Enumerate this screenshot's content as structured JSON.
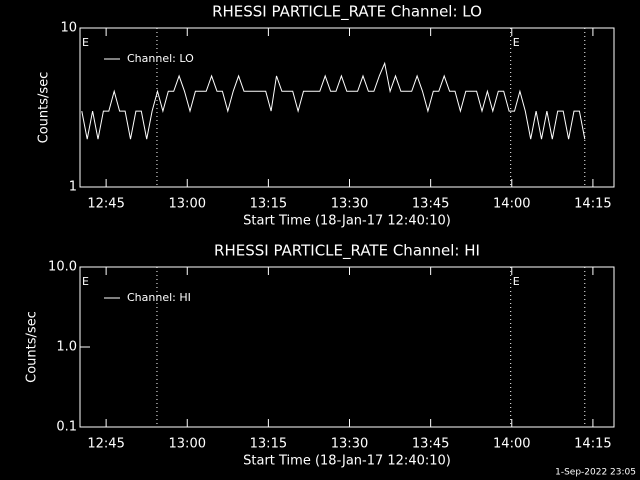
{
  "chart_data": [
    {
      "type": "line",
      "title": "RHESSI PARTICLE_RATE Channel: LO",
      "xlabel": "Start Time (18-Jan-17 12:40:10)",
      "ylabel": "Counts/sec",
      "log_y": true,
      "xlim": [
        760.17,
        858.9
      ],
      "xticks": [
        {
          "value": 765,
          "label": "12:45"
        },
        {
          "value": 780,
          "label": "13:00"
        },
        {
          "value": 795,
          "label": "13:15"
        },
        {
          "value": 810,
          "label": "13:30"
        },
        {
          "value": 825,
          "label": "13:45"
        },
        {
          "value": 840,
          "label": "14:00"
        },
        {
          "value": 855,
          "label": "14:15"
        }
      ],
      "ylim": [
        1,
        10
      ],
      "yticks": [
        1,
        10
      ],
      "series": [
        {
          "name": "Channel: LO",
          "color": "#ffffff",
          "x": [
            760.5,
            761.5,
            762.5,
            763.5,
            764.5,
            765.5,
            766.5,
            767.5,
            768.5,
            769.5,
            770.5,
            771.5,
            772.5,
            773.5,
            774.5,
            775.5,
            776.5,
            777.5,
            778.5,
            779.5,
            780.5,
            781.5,
            782.5,
            783.5,
            784.5,
            785.5,
            786.5,
            787.5,
            788.5,
            789.5,
            790.5,
            791.5,
            792.5,
            793.5,
            794.5,
            795.5,
            796.5,
            797.5,
            798.5,
            799.5,
            800.5,
            801.5,
            802.5,
            803.5,
            804.5,
            805.5,
            806.5,
            807.5,
            808.5,
            809.5,
            810.5,
            811.5,
            812.5,
            813.5,
            814.5,
            815.5,
            816.5,
            817.5,
            818.5,
            819.5,
            820.5,
            821.5,
            822.5,
            823.5,
            824.5,
            825.5,
            826.5,
            827.5,
            828.5,
            829.5,
            830.5,
            831.5,
            832.5,
            833.5,
            834.5,
            835.5,
            836.5,
            837.5,
            838.5,
            839.5,
            840.5,
            841.5,
            842.5,
            843.5,
            844.5,
            845.5,
            846.5,
            847.5,
            848.5,
            849.5,
            850.5,
            851.5,
            852.5,
            853.5
          ],
          "values": [
            3,
            2,
            3,
            2,
            3,
            3,
            4,
            3,
            3,
            2,
            3,
            3,
            2,
            3,
            4,
            3,
            4,
            4,
            5,
            4,
            3,
            4,
            4,
            4,
            5,
            4,
            4,
            3,
            4,
            5,
            4,
            4,
            4,
            4,
            4,
            3,
            5,
            4,
            4,
            4,
            3,
            4,
            4,
            4,
            4,
            5,
            4,
            4,
            5,
            4,
            4,
            4,
            5,
            4,
            4,
            5,
            6,
            4,
            5,
            4,
            4,
            4,
            5,
            4,
            3,
            4,
            4,
            5,
            4,
            4,
            3,
            4,
            4,
            4,
            3,
            4,
            3,
            4,
            4,
            3,
            3,
            4,
            3,
            2,
            3,
            2,
            3,
            2,
            3,
            3,
            2,
            3,
            3,
            2
          ]
        }
      ],
      "vlines": [
        774.4,
        839.8,
        853.5
      ],
      "annotations": [
        {
          "text": "E",
          "x": 760.17
        },
        {
          "text": "E",
          "x": 839.8
        }
      ]
    },
    {
      "type": "line",
      "title": "RHESSI PARTICLE_RATE Channel: HI",
      "xlabel": "Start Time (18-Jan-17 12:40:10)",
      "ylabel": "Counts/sec",
      "log_y": true,
      "xlim": [
        760.17,
        858.9
      ],
      "xticks": [
        {
          "value": 765,
          "label": "12:45"
        },
        {
          "value": 780,
          "label": "13:00"
        },
        {
          "value": 795,
          "label": "13:15"
        },
        {
          "value": 810,
          "label": "13:30"
        },
        {
          "value": 825,
          "label": "13:45"
        },
        {
          "value": 840,
          "label": "14:00"
        },
        {
          "value": 855,
          "label": "14:15"
        }
      ],
      "ylim": [
        0.1,
        10
      ],
      "yticks": [
        0.1,
        {
          "value": 1,
          "label": "1.0"
        },
        {
          "value": 10,
          "label": "10.0"
        }
      ],
      "series": [
        {
          "name": "Channel: HI",
          "color": "#ffffff",
          "x": [],
          "values": []
        }
      ],
      "vlines": [
        774.4,
        839.8,
        853.5
      ],
      "annotations": [
        {
          "text": "E",
          "x": 760.17
        },
        {
          "text": "E",
          "x": 839.8
        }
      ]
    }
  ],
  "footer": "1-Sep-2022 23:05"
}
